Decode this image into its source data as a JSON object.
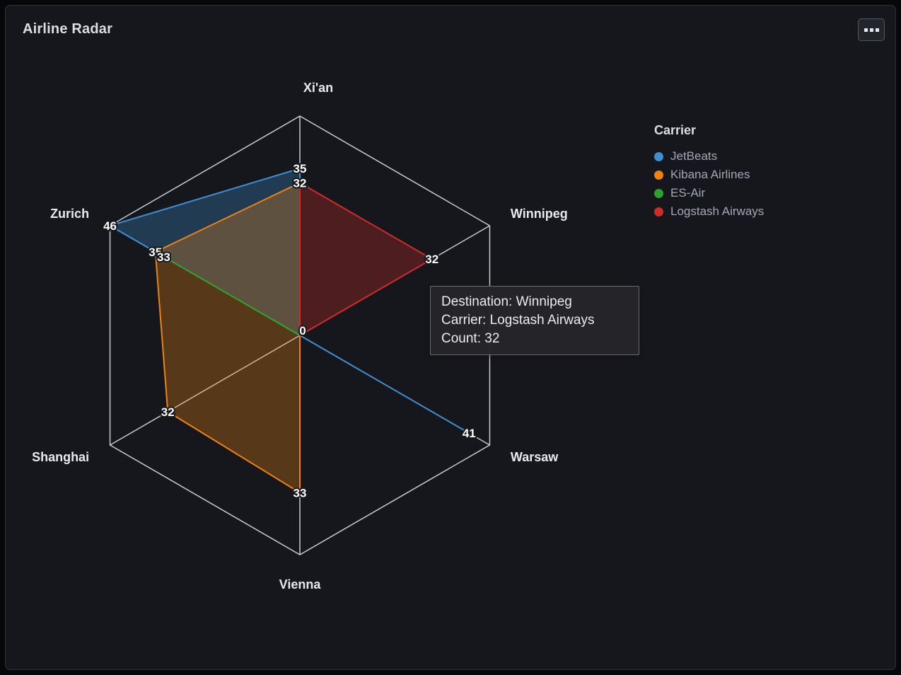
{
  "panel": {
    "title": "Airline Radar",
    "background": "#16171d",
    "options_icon": "boxes-horizontal-icon"
  },
  "legend": {
    "title": "Carrier",
    "items": [
      {
        "label": "JetBeats",
        "color": "#3d8fd1"
      },
      {
        "label": "Kibana Airlines",
        "color": "#f0830f"
      },
      {
        "label": "ES-Air",
        "color": "#2ba32b"
      },
      {
        "label": "Logstash Airways",
        "color": "#cf2b27"
      }
    ]
  },
  "tooltip": {
    "lines": [
      "Destination: Winnipeg",
      "Carrier: Logstash Airways",
      "Count: 32"
    ]
  },
  "chart_data": {
    "type": "radar",
    "title": "Airline Radar",
    "axes": [
      "Xi'an",
      "Winnipeg",
      "Warsaw",
      "Vienna",
      "Shanghai",
      "Zurich"
    ],
    "axis_max": 46,
    "axis_min": 0,
    "rings": 1,
    "grid_color": "#c9cbd1",
    "center_label": "0",
    "legend_position": "right",
    "series": [
      {
        "name": "JetBeats",
        "color": "#3d8fd1",
        "values": [
          35,
          0,
          41,
          0,
          0,
          46
        ]
      },
      {
        "name": "Kibana Airlines",
        "color": "#f0830f",
        "values": [
          32,
          0,
          0,
          33,
          32,
          35
        ]
      },
      {
        "name": "ES-Air",
        "color": "#2ba32b",
        "values": [
          0,
          0,
          0,
          0,
          0,
          33
        ]
      },
      {
        "name": "Logstash Airways",
        "color": "#cf2b27",
        "values": [
          32,
          32,
          0,
          0,
          0,
          0
        ]
      }
    ]
  }
}
